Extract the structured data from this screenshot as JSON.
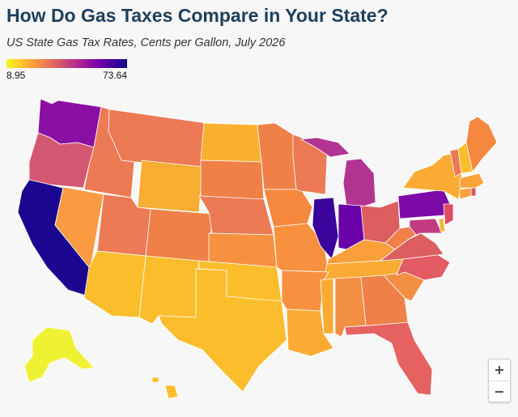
{
  "title": "How Do Gas Taxes Compare in Your State?",
  "subtitle": "US State Gas Tax Rates, Cents per Gallon, July 2026",
  "legend": {
    "min_label": "8.95",
    "max_label": "73.64",
    "min_value": 8.95,
    "max_value": 73.64,
    "colors": [
      "#f0f921",
      "#fdca26",
      "#fb9f3a",
      "#ed7953",
      "#d8576b",
      "#bd3786",
      "#9c179e",
      "#7201a8",
      "#46039f",
      "#0d0887"
    ]
  },
  "zoom": {
    "in_label": "+",
    "out_label": "−"
  }
}
